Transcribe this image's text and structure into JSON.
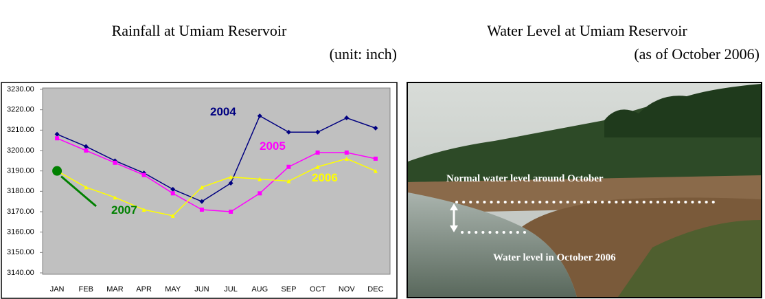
{
  "chart_data": {
    "type": "line",
    "title": "Rainfall at Umiam Reservoir",
    "subtitle": "(unit: inch)",
    "categories": [
      "JAN",
      "FEB",
      "MAR",
      "APR",
      "MAY",
      "JUN",
      "JUL",
      "AUG",
      "SEP",
      "OCT",
      "NOV",
      "DEC"
    ],
    "series": [
      {
        "name": "2004",
        "color": "#000080",
        "values": [
          3208,
          3202,
          3195,
          3189,
          3181,
          3175,
          3184,
          3217,
          3209,
          3209,
          3216,
          3211
        ]
      },
      {
        "name": "2005",
        "color": "#ff00ff",
        "values": [
          3206,
          3200,
          3194,
          3188,
          3179,
          3171,
          3170,
          3179,
          3192,
          3199,
          3199,
          3196
        ]
      },
      {
        "name": "2006",
        "color": "#ffff00",
        "values": [
          3190,
          3182,
          3177,
          3171,
          3168,
          3182,
          3187,
          3186,
          3185,
          3192,
          3196,
          3190
        ]
      },
      {
        "name": "2007",
        "color": "#008000",
        "values": [
          3190,
          null,
          null,
          null,
          null,
          null,
          null,
          null,
          null,
          null,
          null,
          null
        ]
      }
    ],
    "ylim": [
      3140,
      3230
    ],
    "yticks": [
      {
        "value": 3140,
        "label": "3140.00"
      },
      {
        "value": 3150,
        "label": "3150.00"
      },
      {
        "value": 3160,
        "label": "3160.00"
      },
      {
        "value": 3170,
        "label": "3170.00"
      },
      {
        "value": 3180,
        "label": "3180.00"
      },
      {
        "value": 3190,
        "label": "3190.00"
      },
      {
        "value": 3200,
        "label": "3200.00"
      },
      {
        "value": 3210,
        "label": "3210.00"
      },
      {
        "value": 3220,
        "label": "3220.00"
      },
      {
        "value": 3230,
        "label": "3230.00"
      }
    ],
    "grid": false
  },
  "photo": {
    "title": "Water Level at Umiam Reservoir",
    "subtitle": "(as of October 2006)",
    "annotations": [
      "Normal water level around October",
      "Water level in October 2006"
    ]
  }
}
